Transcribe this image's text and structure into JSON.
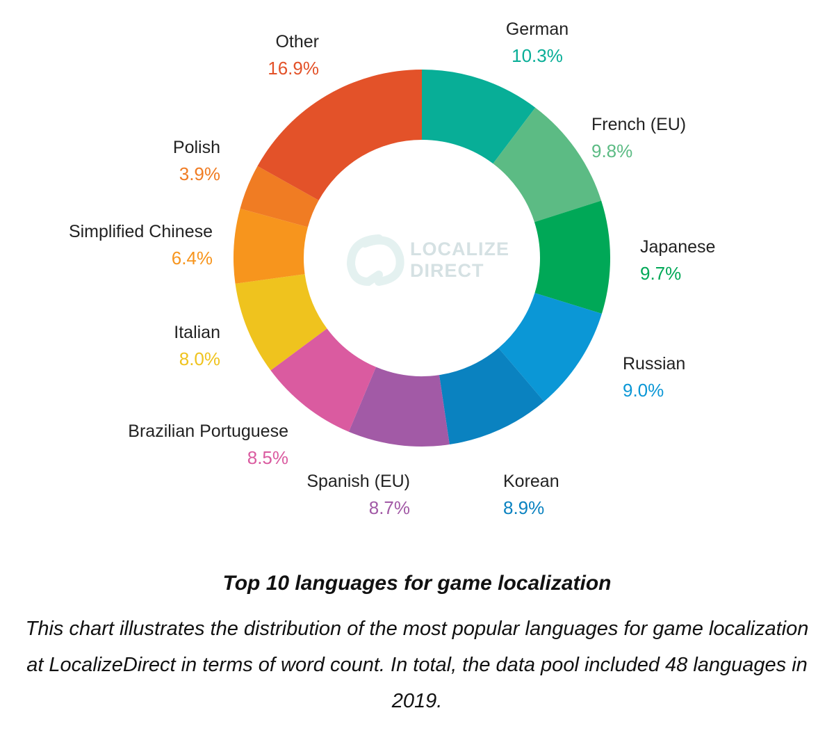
{
  "chart_data": {
    "type": "pie",
    "donut": true,
    "slices": [
      {
        "label": "German",
        "value": 10.3,
        "value_label": "10.3%",
        "color": "#08ae97"
      },
      {
        "label": "French (EU)",
        "value": 9.8,
        "value_label": "9.8%",
        "color": "#5cbb84"
      },
      {
        "label": "Japanese",
        "value": 9.7,
        "value_label": "9.7%",
        "color": "#00a857"
      },
      {
        "label": "Russian",
        "value": 9.0,
        "value_label": "9.0%",
        "color": "#0b97d6"
      },
      {
        "label": "Korean",
        "value": 8.9,
        "value_label": "8.9%",
        "color": "#0a82c0"
      },
      {
        "label": "Spanish (EU)",
        "value": 8.7,
        "value_label": "8.7%",
        "color": "#a25aa6"
      },
      {
        "label": "Brazilian Portuguese",
        "value": 8.5,
        "value_label": "8.5%",
        "color": "#da5ba0"
      },
      {
        "label": "Italian",
        "value": 8.0,
        "value_label": "8.0%",
        "color": "#efc31e"
      },
      {
        "label": "Simplified Chinese",
        "value": 6.4,
        "value_label": "6.4%",
        "color": "#f7951d"
      },
      {
        "label": "Polish",
        "value": 3.9,
        "value_label": "3.9%",
        "color": "#f07c23"
      },
      {
        "label": "Other",
        "value": 16.9,
        "value_label": "16.9%",
        "color": "#e35229"
      }
    ],
    "title": "Top 10 languages for game localization",
    "legend": "none"
  },
  "watermark": {
    "line1": "LOCALIZE",
    "line2": "DIRECT"
  },
  "caption": {
    "title": "Top 10 languages for game localization",
    "body": "This chart illustrates the distribution of the most popular languages for game localization at LocalizeDirect in terms of word count. In total, the data pool included 48 languages in 2019."
  }
}
